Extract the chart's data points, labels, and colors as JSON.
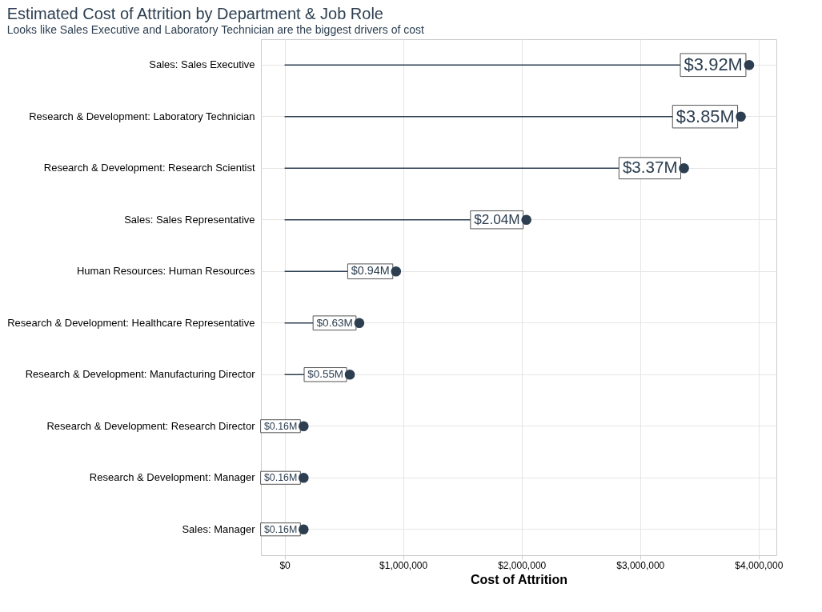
{
  "chart_data": {
    "type": "lollipop",
    "orientation": "horizontal",
    "title": "Estimated Cost of Attrition by Department & Job Role",
    "subtitle": "Looks like Sales Executive and Laboratory Technician are the biggest drivers of cost",
    "xlabel": "Cost of Attrition",
    "categories": [
      "Sales: Sales Executive",
      "Research & Development: Laboratory Technician",
      "Research & Development: Research Scientist",
      "Sales: Sales Representative",
      "Human Resources: Human Resources",
      "Research & Development: Healthcare Representative",
      "Research & Development: Manufacturing Director",
      "Research & Development: Research Director",
      "Research & Development: Manager",
      "Sales: Manager"
    ],
    "values": [
      3920000,
      3850000,
      3370000,
      2040000,
      940000,
      630000,
      550000,
      160000,
      160000,
      160000
    ],
    "value_labels": [
      "$3.92M",
      "$3.85M",
      "$3.37M",
      "$2.04M",
      "$0.94M",
      "$0.63M",
      "$0.55M",
      "$0.16M",
      "$0.16M",
      "$0.16M"
    ],
    "color": "#2c3e50",
    "xlim": [
      -200000,
      4150000
    ],
    "xticks": [
      {
        "value": 0,
        "label": "$0"
      },
      {
        "value": 1000000,
        "label": "$1,000,000"
      },
      {
        "value": 2000000,
        "label": "$2,000,000"
      },
      {
        "value": 3000000,
        "label": "$3,000,000"
      },
      {
        "value": 4000000,
        "label": "$4,000,000"
      }
    ],
    "grid": true,
    "marker": "circle"
  }
}
